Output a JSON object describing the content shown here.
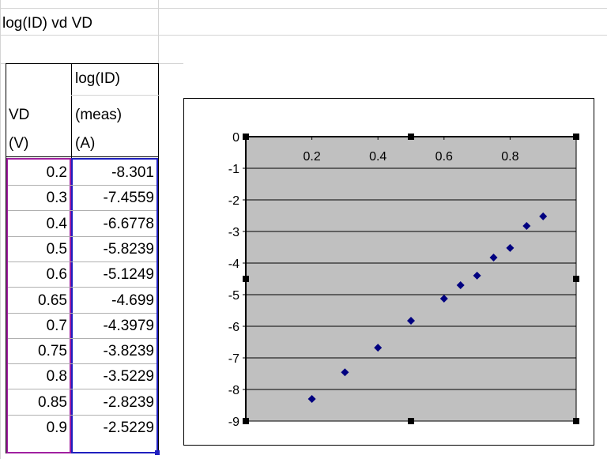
{
  "sheet": {
    "title_cell": "log(ID) vd VD",
    "col_vd_header": [
      "VD",
      "(V)"
    ],
    "col_log_header": [
      "log(ID)",
      "(meas)",
      "(A)"
    ],
    "rows": [
      {
        "vd": "0.2",
        "log": "-8.301"
      },
      {
        "vd": "0.3",
        "log": "-7.4559"
      },
      {
        "vd": "0.4",
        "log": "-6.6778"
      },
      {
        "vd": "0.5",
        "log": "-5.8239"
      },
      {
        "vd": "0.6",
        "log": "-5.1249"
      },
      {
        "vd": "0.65",
        "log": "-4.699"
      },
      {
        "vd": "0.7",
        "log": "-4.3979"
      },
      {
        "vd": "0.75",
        "log": "-3.8239"
      },
      {
        "vd": "0.8",
        "log": "-3.5229"
      },
      {
        "vd": "0.85",
        "log": "-2.8239"
      },
      {
        "vd": "0.9",
        "log": "-2.5229"
      }
    ],
    "selection_colors": {
      "vd_range": "#a020a0",
      "log_range": "#1f1fbf"
    }
  },
  "chart_data": {
    "type": "scatter",
    "x": [
      0.2,
      0.3,
      0.4,
      0.5,
      0.6,
      0.65,
      0.7,
      0.75,
      0.8,
      0.85,
      0.9
    ],
    "y": [
      -8.301,
      -7.4559,
      -6.6778,
      -5.8239,
      -5.1249,
      -4.699,
      -4.3979,
      -3.8239,
      -3.5229,
      -2.8239,
      -2.5229
    ],
    "x_ticks": [
      "0.2",
      "0.4",
      "0.6",
      "0.8"
    ],
    "y_ticks": [
      "0",
      "-1",
      "-2",
      "-3",
      "-4",
      "-5",
      "-6",
      "-7",
      "-8",
      "-9"
    ],
    "xlim": [
      0,
      1
    ],
    "ylim": [
      -9,
      0
    ],
    "grid": true,
    "plot_background": "#c0c0c0",
    "marker_color": "#000080",
    "x_axis_position": "top"
  }
}
